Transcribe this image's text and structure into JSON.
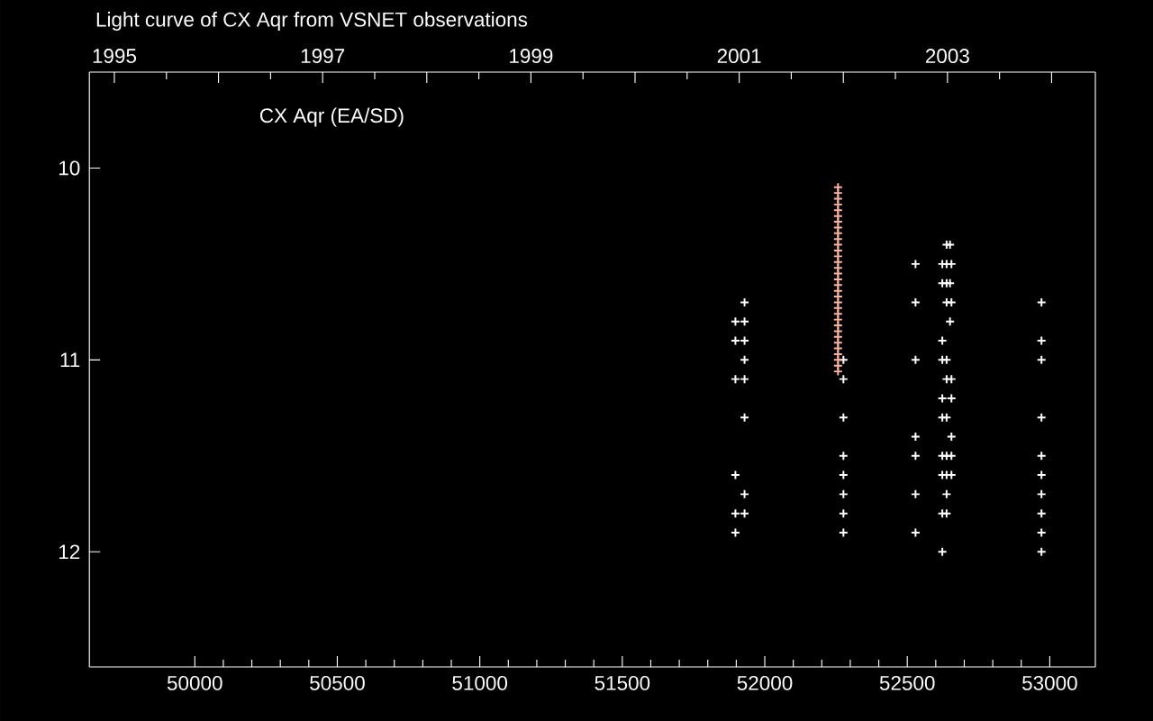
{
  "chart_data": {
    "type": "scatter",
    "title": "Light curve of CX Aqr from VSNET observations",
    "annotations": [
      "CX Aqr (EA/SD)"
    ],
    "marker": "cross",
    "xlim": [
      49630,
      53160
    ],
    "xticks": [
      50000,
      50500,
      51000,
      51500,
      52000,
      52500,
      53000
    ],
    "ylim": [
      12.6,
      9.5
    ],
    "yticks": [
      10,
      11,
      12
    ],
    "x2lim": [
      1994.76,
      2004.42
    ],
    "x2ticks": [
      1995,
      {
        "value": 1996,
        "label": null
      },
      1997,
      {
        "value": 1998,
        "label": null
      },
      1999,
      {
        "value": 2000,
        "label": null
      },
      2001,
      {
        "value": 2002,
        "label": null
      },
      2003,
      {
        "value": 2004,
        "label": null
      }
    ],
    "series": [
      {
        "color": "#ffffff",
        "x": [
          51929,
          51897,
          51929,
          51897,
          51929,
          51929,
          51897,
          51929,
          51929,
          51897,
          51929,
          51897,
          51929,
          51897,
          52276,
          52276,
          52276,
          52276,
          52276,
          52276,
          52276,
          52276,
          52529,
          52529,
          52529,
          52529,
          52529,
          52529,
          52529,
          52638,
          52650,
          52623,
          52638,
          52655,
          52623,
          52638,
          52650,
          52638,
          52655,
          52650,
          52623,
          52623,
          52638,
          52638,
          52655,
          52623,
          52655,
          52623,
          52638,
          52655,
          52623,
          52638,
          52655,
          52623,
          52638,
          52655,
          52638,
          52623,
          52638,
          52623,
          52971,
          52971,
          52971,
          52971,
          52971,
          52971,
          52971,
          52971,
          52971,
          52971
        ],
        "values": [
          10.7,
          10.8,
          10.8,
          10.9,
          10.9,
          11.0,
          11.1,
          11.1,
          11.3,
          11.6,
          11.7,
          11.8,
          11.8,
          11.9,
          11.0,
          11.1,
          11.3,
          11.5,
          11.6,
          11.7,
          11.8,
          11.9,
          10.5,
          10.7,
          11.0,
          11.4,
          11.5,
          11.7,
          11.9,
          10.4,
          10.4,
          10.5,
          10.5,
          10.5,
          10.6,
          10.6,
          10.6,
          10.7,
          10.7,
          10.8,
          10.9,
          11.0,
          11.0,
          11.1,
          11.1,
          11.2,
          11.2,
          11.3,
          11.3,
          11.4,
          11.5,
          11.5,
          11.5,
          11.6,
          11.6,
          11.6,
          11.7,
          11.8,
          11.8,
          12.0,
          10.7,
          10.9,
          11.0,
          11.3,
          11.5,
          11.6,
          11.7,
          11.8,
          11.9,
          12.0
        ]
      },
      {
        "color": "#ffb4a0",
        "x": [
          52257,
          52257,
          52257,
          52257,
          52257,
          52257,
          52257,
          52257,
          52257,
          52257,
          52257,
          52257,
          52257,
          52257,
          52257,
          52257,
          52257,
          52257,
          52257,
          52257,
          52257,
          52257,
          52257,
          52257,
          52257,
          52257,
          52257,
          52257,
          52257,
          52257,
          52257,
          52257,
          52257
        ],
        "values": [
          10.1,
          10.13,
          10.16,
          10.19,
          10.22,
          10.25,
          10.28,
          10.31,
          10.34,
          10.37,
          10.4,
          10.43,
          10.46,
          10.49,
          10.52,
          10.55,
          10.58,
          10.61,
          10.64,
          10.67,
          10.7,
          10.73,
          10.76,
          10.79,
          10.82,
          10.85,
          10.88,
          10.91,
          10.94,
          10.97,
          11.0,
          11.03,
          11.06
        ]
      }
    ]
  }
}
